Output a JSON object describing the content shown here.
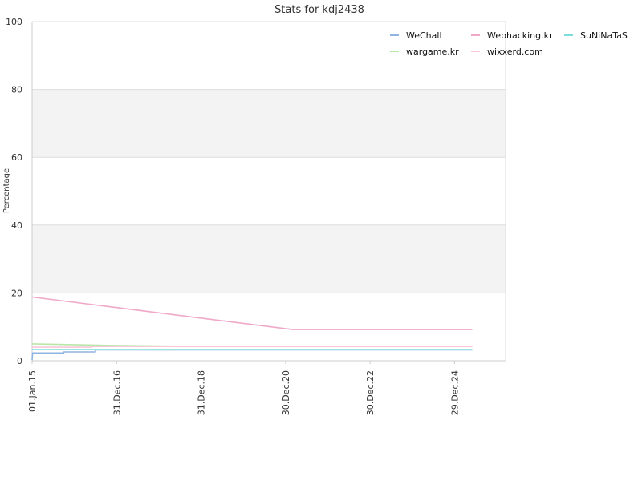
{
  "chart_data": {
    "type": "line",
    "title": "Stats for kdj2438",
    "ylabel": "Percentage",
    "xlabel": "",
    "ylim": [
      0,
      100
    ],
    "yticks": [
      0,
      20,
      40,
      60,
      80,
      100
    ],
    "xlim": [
      "2015-01-01",
      "2026-03-15"
    ],
    "xticks": [
      {
        "label": "01.Jan.15",
        "date": "2015-01-01"
      },
      {
        "label": "31.Dec.16",
        "date": "2016-12-31"
      },
      {
        "label": "31.Dec.18",
        "date": "2018-12-31"
      },
      {
        "label": "30.Dec.20",
        "date": "2020-12-30"
      },
      {
        "label": "30.Dec.22",
        "date": "2022-12-30"
      },
      {
        "label": "29.Dec.24",
        "date": "2024-12-29"
      }
    ],
    "grid": true,
    "legend_position": "top-right",
    "series": [
      {
        "name": "WeChall",
        "color": "#8db4e2",
        "points": [
          {
            "x": "2015-01-01",
            "y": 0.2
          },
          {
            "x": "2015-01-05",
            "y": 2.3
          },
          {
            "x": "2015-10-01",
            "y": 2.3
          },
          {
            "x": "2015-10-02",
            "y": 2.6
          },
          {
            "x": "2016-07-01",
            "y": 2.6
          },
          {
            "x": "2016-07-02",
            "y": 3.2
          },
          {
            "x": "2025-06-01",
            "y": 3.2
          }
        ]
      },
      {
        "name": "Webhacking.kr",
        "color": "#f0a8c8",
        "points": [
          {
            "x": "2015-01-01",
            "y": 18.8
          },
          {
            "x": "2021-03-01",
            "y": 9.2
          },
          {
            "x": "2025-06-01",
            "y": 9.2
          }
        ]
      },
      {
        "name": "SuNiNaTaS",
        "color": "#7fdcdc",
        "points": [
          {
            "x": "2015-01-01",
            "y": 3.3
          },
          {
            "x": "2025-06-01",
            "y": 3.3
          }
        ]
      },
      {
        "name": "wargame.kr",
        "color": "#b8e6a8",
        "points": [
          {
            "x": "2015-01-01",
            "y": 5.0
          },
          {
            "x": "2015-10-01",
            "y": 4.8
          },
          {
            "x": "2017-01-01",
            "y": 4.5
          },
          {
            "x": "2018-06-01",
            "y": 4.3
          },
          {
            "x": "2025-06-01",
            "y": 4.3
          }
        ]
      },
      {
        "name": "wixxerd.com",
        "color": "#f8c8d8",
        "points": [
          {
            "x": "2015-01-01",
            "y": 4.0
          },
          {
            "x": "2016-06-01",
            "y": 4.0
          },
          {
            "x": "2016-06-02",
            "y": 4.2
          },
          {
            "x": "2025-06-01",
            "y": 4.2
          }
        ]
      }
    ]
  }
}
